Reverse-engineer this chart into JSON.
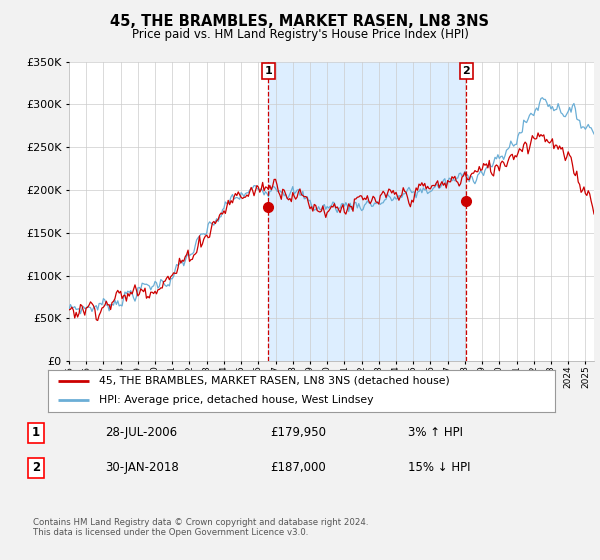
{
  "title": "45, THE BRAMBLES, MARKET RASEN, LN8 3NS",
  "subtitle": "Price paid vs. HM Land Registry's House Price Index (HPI)",
  "legend_line1": "45, THE BRAMBLES, MARKET RASEN, LN8 3NS (detached house)",
  "legend_line2": "HPI: Average price, detached house, West Lindsey",
  "table_rows": [
    {
      "num": "1",
      "date": "28-JUL-2006",
      "price": "£179,950",
      "hpi": "3% ↑ HPI"
    },
    {
      "num": "2",
      "date": "30-JAN-2018",
      "price": "£187,000",
      "hpi": "15% ↓ HPI"
    }
  ],
  "footnote": "Contains HM Land Registry data © Crown copyright and database right 2024.\nThis data is licensed under the Open Government Licence v3.0.",
  "vline1_x": 2006.57,
  "vline2_x": 2018.08,
  "sale1_x": 2006.57,
  "sale1_y": 179950,
  "sale2_x": 2018.08,
  "sale2_y": 187000,
  "hpi_color": "#6baed6",
  "price_color": "#cc0000",
  "shade_color": "#ddeeff",
  "ylim": [
    0,
    350000
  ],
  "xlim_left": 1995.0,
  "xlim_right": 2025.5,
  "background_color": "#f2f2f2",
  "plot_background": "#ffffff",
  "grid_color": "#cccccc"
}
